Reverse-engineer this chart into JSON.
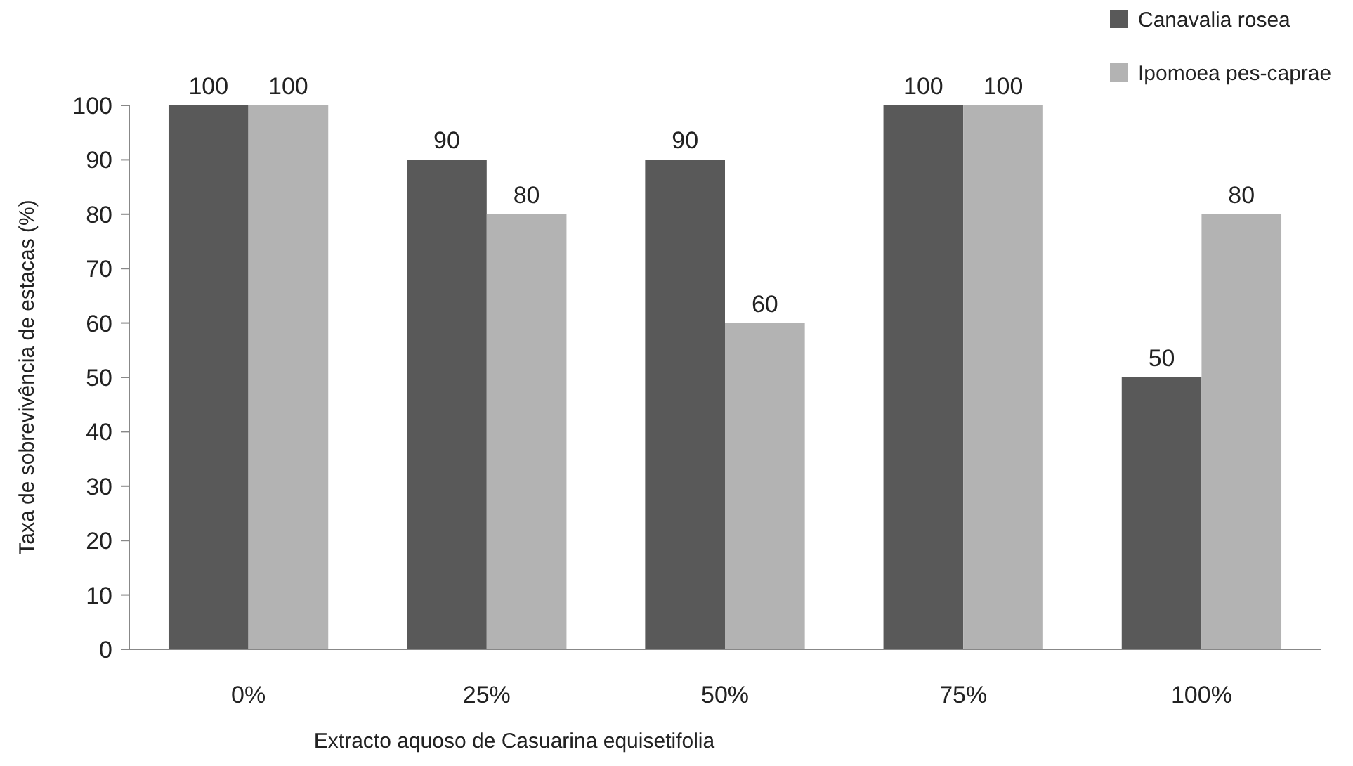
{
  "chart_data": {
    "type": "bar",
    "xlabel": "Extracto aquoso de Casuarina equisetifolia",
    "ylabel": "Taxa de sobrevivência de estacas (%)",
    "categories": [
      "0%",
      "25%",
      "50%",
      "75%",
      "100%"
    ],
    "series": [
      {
        "name": "Canavalia rosea",
        "color": "#595959",
        "values": [
          100,
          90,
          90,
          100,
          50
        ]
      },
      {
        "name": "Ipomoea pes-caprae",
        "color": "#b3b3b3",
        "values": [
          100,
          80,
          60,
          100,
          80
        ]
      }
    ],
    "ylim": [
      0,
      100
    ],
    "yticks": [
      0,
      10,
      20,
      30,
      40,
      50,
      60,
      70,
      80,
      90,
      100
    ],
    "grid": false,
    "legend": "top right",
    "data_labels": true
  }
}
